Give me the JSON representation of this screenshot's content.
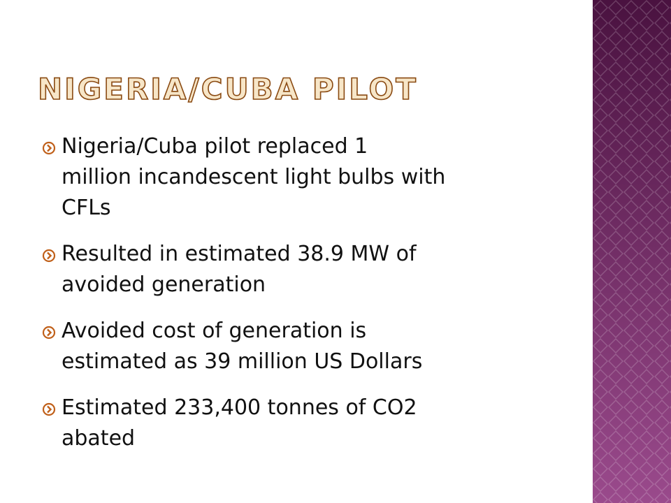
{
  "slide": {
    "title": "NIGERIA/CUBA PILOT",
    "bullets": [
      [
        "Nigeria/Cuba pilot replaced 1",
        "million incandescent light bulbs with",
        "CFLs"
      ],
      [
        "Resulted in estimated 38.9 MW of",
        "avoided generation"
      ],
      [
        "Avoided cost of generation is",
        "estimated as 39 million US Dollars"
      ],
      [
        "Estimated 233,400 tonnes of CO2",
        "abated"
      ]
    ]
  }
}
